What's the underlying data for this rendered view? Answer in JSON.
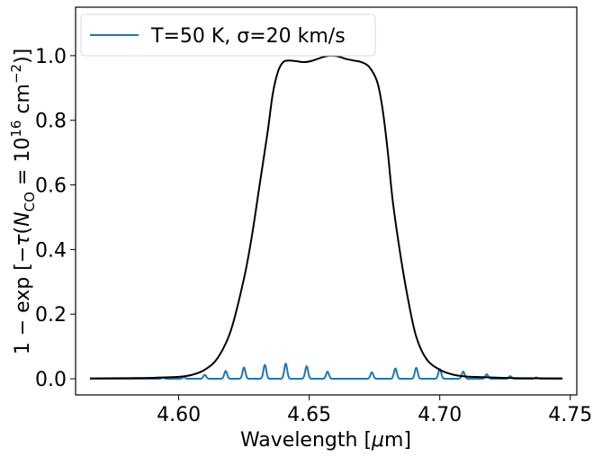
{
  "chart_data": {
    "type": "line",
    "xlabel": "Wavelength [μm]",
    "ylabel": "1 − exp [−τ(N_CO = 10^16 cm^−2)]",
    "xlim": [
      4.5605,
      4.7525
    ],
    "ylim": [
      -0.05,
      1.15
    ],
    "xticks": [
      4.6,
      4.65,
      4.7,
      4.75
    ],
    "xtick_labels": [
      "4.60",
      "4.65",
      "4.70",
      "4.75"
    ],
    "yticks": [
      0.0,
      0.2,
      0.4,
      0.6,
      0.8,
      1.0
    ],
    "ytick_labels": [
      "0.0",
      "0.2",
      "0.4",
      "0.6",
      "0.8",
      "1.0"
    ],
    "grid": false,
    "legend_position": "top-left",
    "series": [
      {
        "name": "T=50 K, σ=20 km/s",
        "color": "#1f77b4",
        "baseline": 0.0,
        "x_range": [
          4.566,
          4.747
        ],
        "peaks": [
          {
            "x": 4.594,
            "y": 0.003
          },
          {
            "x": 4.602,
            "y": 0.005
          },
          {
            "x": 4.61,
            "y": 0.012
          },
          {
            "x": 4.618,
            "y": 0.024
          },
          {
            "x": 4.625,
            "y": 0.035
          },
          {
            "x": 4.633,
            "y": 0.043
          },
          {
            "x": 4.641,
            "y": 0.047
          },
          {
            "x": 4.649,
            "y": 0.039
          },
          {
            "x": 4.657,
            "y": 0.022
          },
          {
            "x": 4.674,
            "y": 0.02
          },
          {
            "x": 4.683,
            "y": 0.032
          },
          {
            "x": 4.691,
            "y": 0.034
          },
          {
            "x": 4.7,
            "y": 0.03
          },
          {
            "x": 4.709,
            "y": 0.022
          },
          {
            "x": 4.718,
            "y": 0.014
          },
          {
            "x": 4.727,
            "y": 0.008
          },
          {
            "x": 4.737,
            "y": 0.004
          }
        ]
      },
      {
        "name": "",
        "color": "#000000",
        "x": [
          4.566,
          4.58,
          4.59,
          4.6,
          4.605,
          4.61,
          4.615,
          4.62,
          4.625,
          4.628,
          4.631,
          4.634,
          4.636,
          4.638,
          4.64,
          4.642,
          4.645,
          4.648,
          4.651,
          4.655,
          4.658,
          4.661,
          4.664,
          4.667,
          4.67,
          4.673,
          4.676,
          4.678,
          4.68,
          4.682,
          4.685,
          4.688,
          4.691,
          4.695,
          4.7,
          4.705,
          4.71,
          4.72,
          4.73,
          4.747
        ],
        "y": [
          0.001,
          0.002,
          0.003,
          0.006,
          0.012,
          0.028,
          0.065,
          0.15,
          0.31,
          0.44,
          0.6,
          0.76,
          0.88,
          0.95,
          0.98,
          0.985,
          0.983,
          0.98,
          0.984,
          0.995,
          1.0,
          0.998,
          0.99,
          0.985,
          0.98,
          0.965,
          0.92,
          0.84,
          0.71,
          0.55,
          0.38,
          0.24,
          0.13,
          0.06,
          0.028,
          0.013,
          0.007,
          0.004,
          0.002,
          0.001
        ]
      }
    ]
  }
}
